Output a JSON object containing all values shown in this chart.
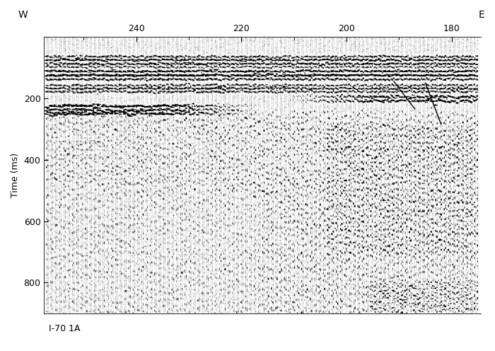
{
  "title_left": "W",
  "title_right": "E",
  "xlabel_bottom": "I-70 1A",
  "ylabel": "Time (ms)",
  "x_tick_labels": [
    240,
    220,
    200,
    180
  ],
  "y_tick_labels": [
    200,
    400,
    600,
    800
  ],
  "x_min": 175,
  "x_max": 257,
  "y_min": 0,
  "y_max": 900,
  "background_color": "#ffffff",
  "figsize": [
    7.0,
    4.96
  ],
  "dpi": 100
}
